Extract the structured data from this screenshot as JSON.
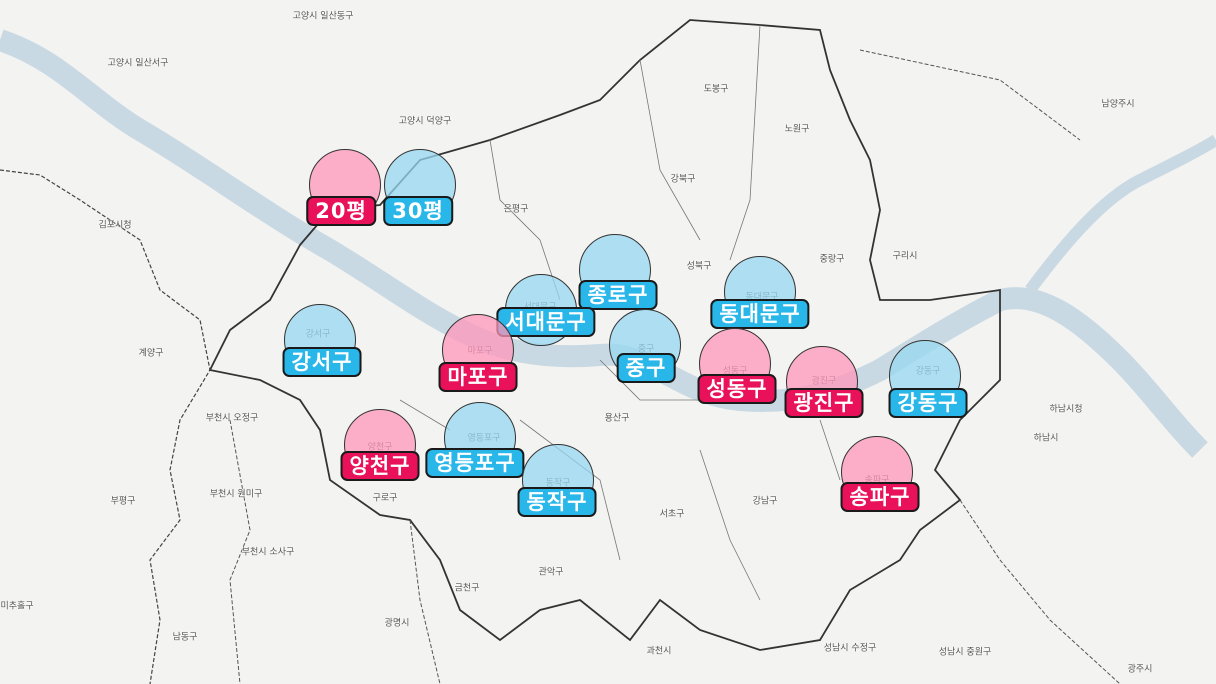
{
  "legend": {
    "items": [
      {
        "label": "20평",
        "color": "#e8115a",
        "circle": "rgba(255,150,185,0.75)"
      },
      {
        "label": "30평",
        "color": "#29b6e8",
        "circle": "rgba(150,215,240,0.75)"
      }
    ]
  },
  "markers": [
    {
      "label": "종로구",
      "legend": "30평"
    },
    {
      "label": "서대문구",
      "legend": "30평"
    },
    {
      "label": "동대문구",
      "legend": "30평"
    },
    {
      "label": "중구",
      "legend": "30평"
    },
    {
      "label": "강서구",
      "legend": "30평"
    },
    {
      "label": "마포구",
      "legend": "20평"
    },
    {
      "label": "성동구",
      "legend": "20평"
    },
    {
      "label": "광진구",
      "legend": "20평"
    },
    {
      "label": "강동구",
      "legend": "30평"
    },
    {
      "label": "양천구",
      "legend": "20평"
    },
    {
      "label": "영등포구",
      "legend": "30평"
    },
    {
      "label": "동작구",
      "legend": "30평"
    },
    {
      "label": "송파구",
      "legend": "20평"
    }
  ],
  "map_labels": [
    "고양시 일산동구",
    "고양시 일산서구",
    "고양시 덕양구",
    "도봉구",
    "노원구",
    "강북구",
    "은평구",
    "성북구",
    "중랑구",
    "구리시",
    "남양주시",
    "김포시청",
    "계양구",
    "부천시 오정구",
    "부평구",
    "부천시 원미구",
    "구로구",
    "부천시 소사구",
    "광명시",
    "금천구",
    "관악구",
    "서초구",
    "강남구",
    "용산구",
    "과천시",
    "성남시 수정구",
    "성남시 중원구",
    "하남시",
    "미추홀구",
    "남동구",
    "광주시",
    "하남시청",
    "강서구",
    "마포구",
    "서대문구",
    "중구",
    "동대문구",
    "성동구",
    "광진구",
    "강동구",
    "양천구",
    "영등포구",
    "동작구",
    "송파구"
  ]
}
